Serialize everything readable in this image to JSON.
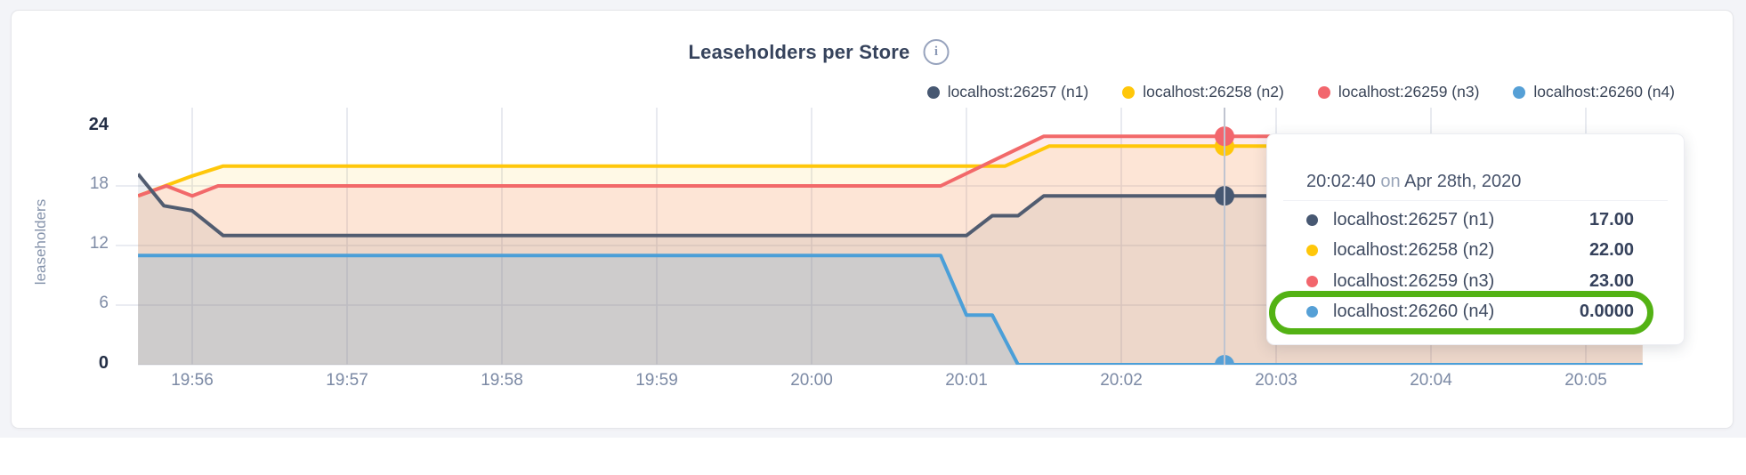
{
  "chart": {
    "title": "Leaseholders per Store",
    "info_icon": "i",
    "ylabel": "leaseholders"
  },
  "chart_data": {
    "type": "area",
    "title": "Leaseholders per Store",
    "ylabel": "leaseholders",
    "ylim": [
      0,
      24
    ],
    "y_ticks": [
      0,
      6,
      12,
      18,
      24
    ],
    "grid_y": [
      6,
      12,
      18
    ],
    "grid": true,
    "legend_position": "top-right",
    "x_ticks": [
      "19:56",
      "19:57",
      "19:58",
      "19:59",
      "20:00",
      "20:01",
      "20:02",
      "20:03",
      "20:04",
      "20:05"
    ],
    "x_tick_seconds": [
      0,
      60,
      120,
      180,
      240,
      300,
      360,
      420,
      480,
      540
    ],
    "x_range_seconds": [
      -21,
      562
    ],
    "series": [
      {
        "name": "localhost:26257 (n1)",
        "color": "#475872",
        "line_color": "#515c70",
        "fill_opacity": 0.11,
        "points": [
          [
            -21,
            19.2
          ],
          [
            -11,
            16
          ],
          [
            0,
            15.5
          ],
          [
            12,
            13
          ],
          [
            300,
            13
          ],
          [
            310,
            15
          ],
          [
            320,
            15
          ],
          [
            330,
            17
          ],
          [
            562,
            17
          ]
        ]
      },
      {
        "name": "localhost:26258 (n2)",
        "color": "#ffc70a",
        "line_color": "#ffc70a",
        "fill_opacity": 0.1,
        "points": [
          [
            -21,
            17
          ],
          [
            0,
            19
          ],
          [
            12,
            20
          ],
          [
            315,
            20
          ],
          [
            332,
            22
          ],
          [
            562,
            22
          ]
        ]
      },
      {
        "name": "localhost:26259 (n3)",
        "color": "#f2666d",
        "line_color": "#f2696a",
        "fill_opacity": 0.13,
        "points": [
          [
            -21,
            17
          ],
          [
            -10,
            18
          ],
          [
            0,
            17
          ],
          [
            10,
            18
          ],
          [
            290,
            18
          ],
          [
            330,
            23
          ],
          [
            562,
            23
          ]
        ]
      },
      {
        "name": "localhost:26260 (n4)",
        "color": "#56a0d6",
        "line_color": "#4b9fd8",
        "fill_opacity": 0.2,
        "points": [
          [
            -21,
            11
          ],
          [
            290,
            11
          ],
          [
            300,
            5
          ],
          [
            310,
            5
          ],
          [
            320,
            0
          ],
          [
            562,
            0
          ]
        ]
      }
    ],
    "hover": {
      "time_label": "20:02:40",
      "time_seconds": 400,
      "values": [
        17,
        22,
        23,
        0
      ]
    }
  },
  "tooltip": {
    "time": "20:02:40",
    "conjunction": "on",
    "date": "Apr 28th, 2020",
    "highlight_color": "#53b214",
    "rows": [
      {
        "name": "localhost:26257 (n1)",
        "value": "17.00",
        "color": "#475872"
      },
      {
        "name": "localhost:26258 (n2)",
        "value": "22.00",
        "color": "#ffc70a"
      },
      {
        "name": "localhost:26259 (n3)",
        "value": "23.00",
        "color": "#f2666d"
      },
      {
        "name": "localhost:26260 (n4)",
        "value": "0.0000",
        "color": "#56a0d6"
      }
    ]
  }
}
